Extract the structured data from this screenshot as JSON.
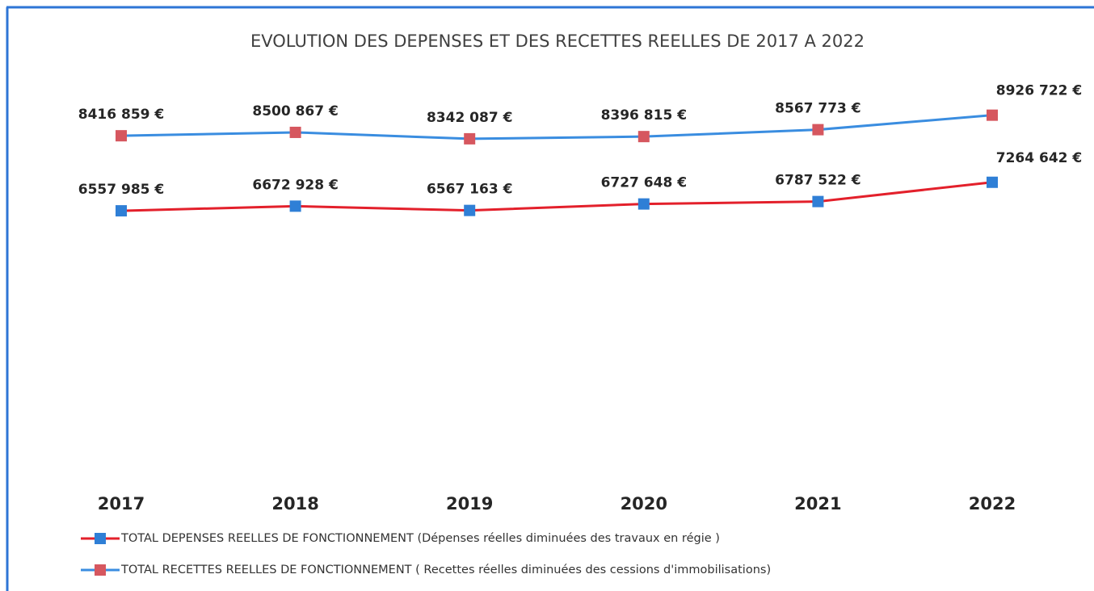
{
  "chart_data": {
    "type": "line",
    "title": "EVOLUTION DES DEPENSES ET DES RECETTES REELLES DE 2017 A 2022",
    "categories": [
      "2017",
      "2018",
      "2019",
      "2020",
      "2021",
      "2022"
    ],
    "series": [
      {
        "name": "TOTAL DEPENSES  REELLES DE FONCTIONNEMENT (Dépenses réelles diminuées des travaux en régie )",
        "color": "#e3202b",
        "marker_color": "#2f7fd6",
        "values": [
          6557985,
          6672928,
          6567163,
          6727648,
          6787522,
          7264642
        ],
        "value_labels": [
          "6557 985 €",
          "6672 928 €",
          "6567 163 €",
          "6727 648 €",
          "6787 522 €",
          "7264 642 €"
        ]
      },
      {
        "name": "TOTAL RECETTES  REELLES DE FONCTIONNEMENT ( Recettes réelles diminuées des cessions d'immobilisations)",
        "color": "#3a8de0",
        "marker_color": "#d6575f",
        "values": [
          8416859,
          8500867,
          8342087,
          8396815,
          8567773,
          8926722
        ],
        "value_labels": [
          "8416 859 €",
          "8500 867 €",
          "8342 087 €",
          "8396 815 €",
          "8567 773 €",
          "8926 722 €"
        ]
      }
    ],
    "ylim": [
      0,
      10000000
    ]
  }
}
